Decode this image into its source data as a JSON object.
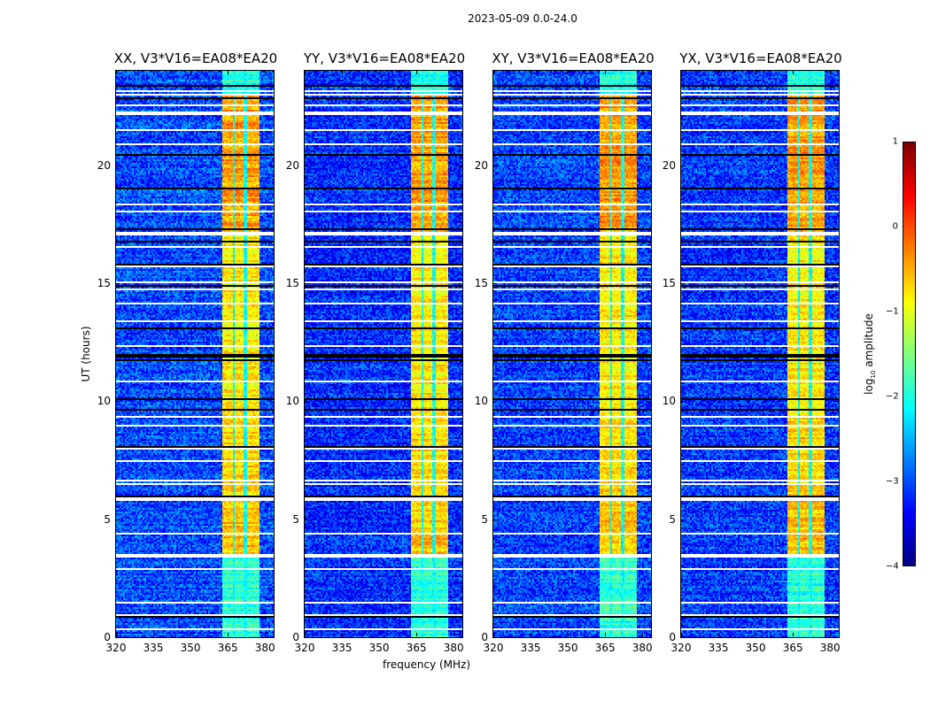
{
  "chart_data": {
    "type": "heatmap",
    "title": "2023-05-09 0.0-24.0",
    "xlabel": "frequency (MHz)",
    "ylabel": "UT (hours)",
    "xlim": [
      320,
      383.5
    ],
    "ylim": [
      0,
      24
    ],
    "xticks": [
      "320",
      "335",
      "350",
      "365",
      "380"
    ],
    "yticks": [
      "0",
      "5",
      "10",
      "15",
      "20"
    ],
    "colormap": "jet",
    "colorbar": {
      "label": "log10 amplitude",
      "range": [
        -4,
        1
      ],
      "ticks": [
        "1",
        "0",
        "−1",
        "−2",
        "−3",
        "−4"
      ]
    },
    "panels": [
      {
        "name": "XX",
        "title": "XX, V3*V16=EA08*EA20"
      },
      {
        "name": "YY",
        "title": "YY, V3*V16=EA08*EA20"
      },
      {
        "name": "XY",
        "title": "XY, V3*V16=EA08*EA20"
      },
      {
        "name": "YX",
        "title": "YX, V3*V16=EA08*EA20"
      }
    ],
    "background_level": -3.0,
    "signal_band_mhz": [
      363,
      377.5
    ],
    "signal_subbands_mhz": [
      [
        363,
        367
      ],
      [
        368,
        371.5
      ],
      [
        372.5,
        375.5
      ],
      [
        376,
        377.5
      ]
    ],
    "signal_level_by_time": [
      {
        "t": [
          0,
          3.5
        ],
        "level": -1.9
      },
      {
        "t": [
          3.5,
          5.8
        ],
        "level": -0.6
      },
      {
        "t": [
          5.8,
          9.5
        ],
        "level": -0.7
      },
      {
        "t": [
          9.5,
          12.5
        ],
        "level": -0.8
      },
      {
        "t": [
          12.5,
          17
        ],
        "level": -0.8
      },
      {
        "t": [
          17,
          23
        ],
        "level": -0.4
      },
      {
        "t": [
          23,
          24
        ],
        "level": -2.0
      }
    ],
    "flagged_gaps_hours": [
      0.4,
      1.0,
      1.5,
      2.95,
      3.45,
      3.55,
      4.45,
      5.85,
      5.95,
      6.55,
      6.65,
      7.5,
      8.0,
      9.0,
      9.4,
      10.85,
      12.4,
      13.4,
      14.2,
      14.75,
      15.1,
      15.75,
      16.6,
      17.1,
      17.2,
      18.1,
      18.35,
      20.9,
      21.55,
      22.2,
      22.3,
      22.6,
      23.0,
      23.2
    ],
    "dark_lines_hours": [
      0.9,
      6.0,
      8.1,
      9.7,
      10.1,
      11.75,
      11.9,
      12.0,
      13.15,
      14.95,
      15.85,
      16.8,
      17.3,
      19.05,
      20.45,
      22.85,
      23.4
    ]
  }
}
